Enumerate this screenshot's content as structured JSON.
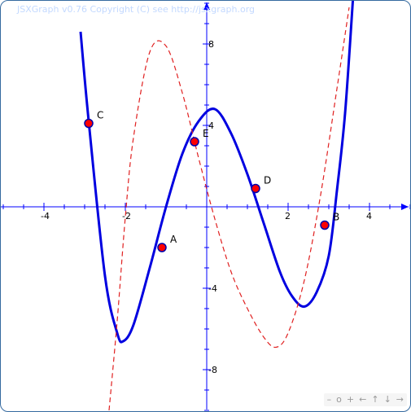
{
  "copyright": "JSXGraph v0.76 Copyright (C) see http://jsxgraph.org",
  "navbar": {
    "zoom_out": "–",
    "zoom_reset": "o",
    "zoom_in": "+",
    "left": "←",
    "up": "↑",
    "down": "↓",
    "right": "→"
  },
  "colors": {
    "axis": "#0000ff",
    "curve": "#0000e0",
    "derivative": "#e02020",
    "point_fill": "#ff0000",
    "point_stroke": "#0000aa",
    "border": "#356aa0"
  },
  "axes": {
    "x_ticks": [
      {
        "value": -4,
        "label": "-4"
      },
      {
        "value": -2,
        "label": "-2"
      },
      {
        "value": 2,
        "label": "2"
      },
      {
        "value": 4,
        "label": "4"
      }
    ],
    "y_ticks": [
      {
        "value": 8,
        "label": "8"
      },
      {
        "value": 4,
        "label": "4"
      },
      {
        "value": -4,
        "label": "-4"
      },
      {
        "value": -8,
        "label": "-8"
      }
    ]
  },
  "chart_data": {
    "type": "line",
    "xlim": [
      -5.04,
      5.04
    ],
    "ylim": [
      -10.1,
      10.1
    ],
    "grid": false,
    "series": [
      {
        "style": "solid",
        "color": "#0000e0",
        "points": [
          [
            -3.1,
            8.6
          ],
          [
            -2.9,
            4.2
          ],
          [
            -2.5,
            -3.4
          ],
          [
            -2.2,
            -6.2
          ],
          [
            -2.05,
            -6.6
          ],
          [
            -1.8,
            -5.8
          ],
          [
            -1.4,
            -3.0
          ],
          [
            -1.0,
            0.0
          ],
          [
            -0.6,
            2.6
          ],
          [
            -0.2,
            4.2
          ],
          [
            0.2,
            4.8
          ],
          [
            0.6,
            3.6
          ],
          [
            1.0,
            1.6
          ],
          [
            1.4,
            -0.8
          ],
          [
            1.8,
            -3.2
          ],
          [
            2.1,
            -4.4
          ],
          [
            2.4,
            -4.9
          ],
          [
            2.7,
            -4.2
          ],
          [
            3.0,
            -2.4
          ],
          [
            3.2,
            0.8
          ],
          [
            3.4,
            4.6
          ],
          [
            3.6,
            10.4
          ]
        ]
      },
      {
        "style": "dashed",
        "color": "#e02020",
        "points": [
          [
            -2.4,
            -10.0
          ],
          [
            -2.2,
            -5.6
          ],
          [
            -2.0,
            -0.5
          ],
          [
            -1.8,
            3.4
          ],
          [
            -1.4,
            7.6
          ],
          [
            -1.0,
            7.9
          ],
          [
            -0.6,
            5.6
          ],
          [
            -0.2,
            2.4
          ],
          [
            0.2,
            -0.6
          ],
          [
            0.6,
            -3.2
          ],
          [
            1.0,
            -5.0
          ],
          [
            1.4,
            -6.4
          ],
          [
            1.7,
            -6.9
          ],
          [
            2.0,
            -6.2
          ],
          [
            2.4,
            -3.6
          ],
          [
            2.8,
            0.6
          ],
          [
            3.2,
            5.8
          ],
          [
            3.5,
            9.8
          ]
        ]
      }
    ],
    "points": [
      {
        "name": "C",
        "x": -2.9,
        "y": 4.1
      },
      {
        "name": "E",
        "x": -0.3,
        "y": 3.2
      },
      {
        "name": "D",
        "x": 1.2,
        "y": 0.9
      },
      {
        "name": "A",
        "x": -1.1,
        "y": -2.0
      },
      {
        "name": "B",
        "x": 2.9,
        "y": -0.9
      }
    ]
  }
}
